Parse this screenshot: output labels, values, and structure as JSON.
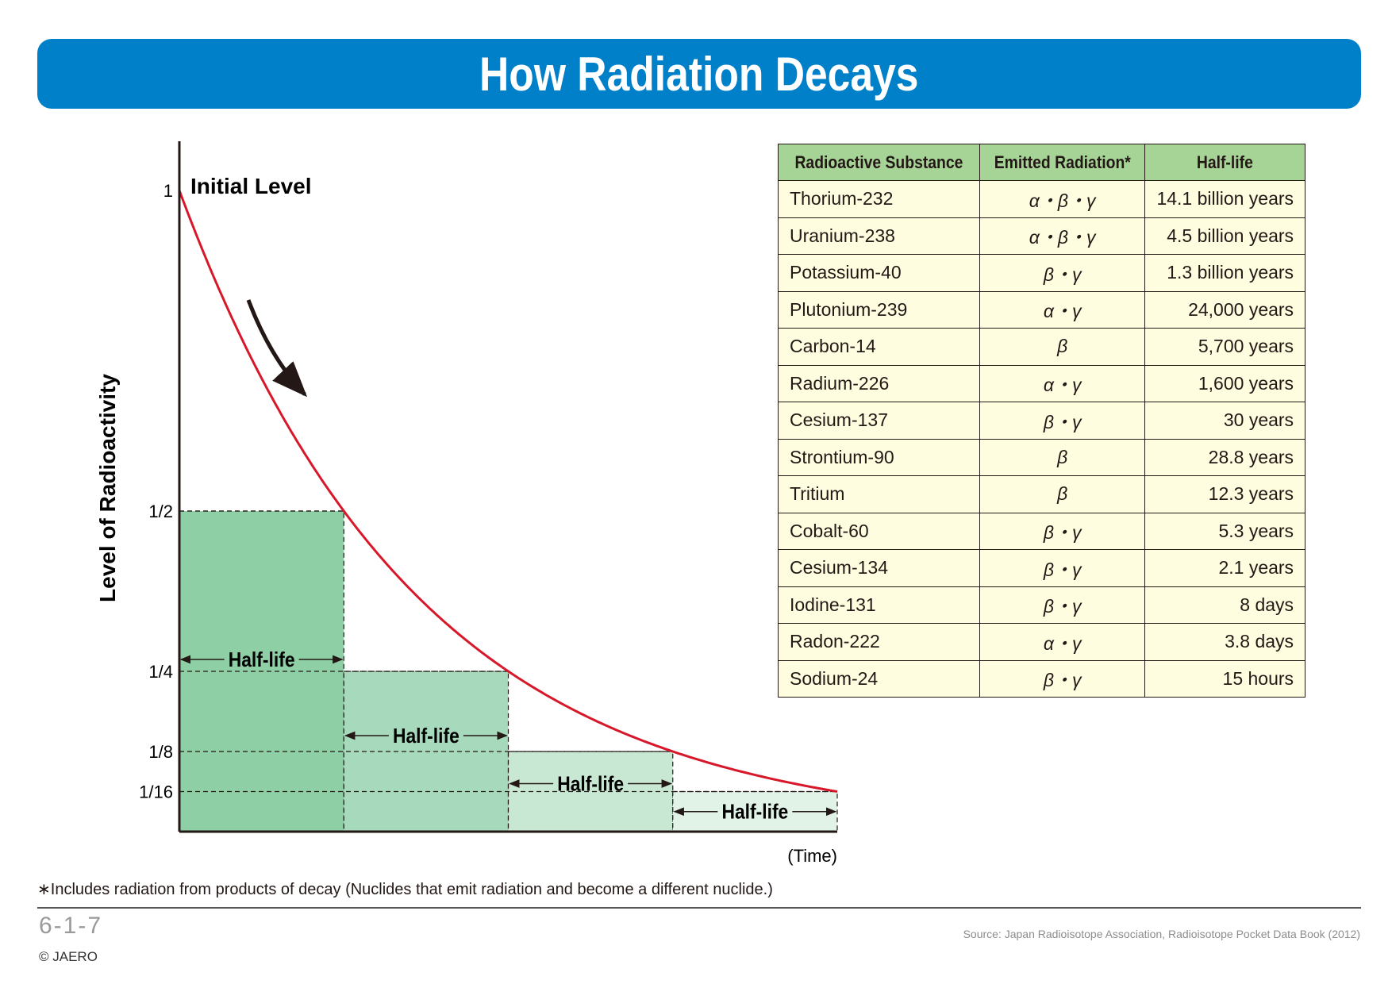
{
  "title": "How Radiation Decays",
  "chart_data": {
    "type": "line",
    "ylabel": "Level of Radioactivity",
    "xlabel": "(Time)",
    "x_unit": "half-lives",
    "xlim": [
      0,
      4
    ],
    "ylim": [
      0,
      1
    ],
    "yticks": [
      {
        "value": 1,
        "label": "1"
      },
      {
        "value": 0.5,
        "label": "1/2"
      },
      {
        "value": 0.25,
        "label": "1/4"
      },
      {
        "value": 0.125,
        "label": "1/8"
      },
      {
        "value": 0.0625,
        "label": "1/16"
      }
    ],
    "series": [
      {
        "x": [
          0,
          0.25,
          0.5,
          0.75,
          1,
          1.25,
          1.5,
          1.75,
          2,
          2.25,
          2.5,
          2.75,
          3,
          3.25,
          3.5,
          3.75,
          4
        ],
        "values": [
          1,
          0.841,
          0.707,
          0.595,
          0.5,
          0.42,
          0.354,
          0.297,
          0.25,
          0.21,
          0.177,
          0.149,
          0.125,
          0.105,
          0.088,
          0.074,
          0.0625
        ],
        "color": "#d7182a"
      }
    ],
    "bars": [
      {
        "x_start": 0,
        "x_end": 1,
        "height": 0.5,
        "label": "Half-life",
        "color": "#8fcfa5"
      },
      {
        "x_start": 1,
        "x_end": 2,
        "height": 0.25,
        "label": "Half-life",
        "color": "#a7d9bc"
      },
      {
        "x_start": 2,
        "x_end": 3,
        "height": 0.125,
        "label": "Half-life",
        "color": "#c9e8d4"
      },
      {
        "x_start": 3,
        "x_end": 4,
        "height": 0.0625,
        "label": "Half-life",
        "color": "#e1f2e7"
      }
    ],
    "annotations": [
      {
        "text": "Initial Level",
        "x": 0,
        "y": 1
      }
    ],
    "arrow_color": "#231815"
  },
  "table": {
    "headers": [
      "Radioactive Substance",
      "Emitted Radiation*",
      "Half-life"
    ],
    "rows": [
      [
        "Thorium-232",
        "α・β・γ",
        "14.1 billion years"
      ],
      [
        "Uranium-238",
        "α・β・γ",
        "4.5 billion years"
      ],
      [
        "Potassium-40",
        "β・γ",
        "1.3 billion years"
      ],
      [
        "Plutonium-239",
        "α・γ",
        "24,000 years"
      ],
      [
        "Carbon-14",
        "β",
        "5,700 years"
      ],
      [
        "Radium-226",
        "α・γ",
        "1,600 years"
      ],
      [
        "Cesium-137",
        "β・γ",
        "30 years"
      ],
      [
        "Strontium-90",
        "β",
        "28.8 years"
      ],
      [
        "Tritium",
        "β",
        "12.3 years"
      ],
      [
        "Cobalt-60",
        "β・γ",
        "5.3 years"
      ],
      [
        "Cesium-134",
        "β・γ",
        "2.1 years"
      ],
      [
        "Iodine-131",
        "β・γ",
        "8 days"
      ],
      [
        "Radon-222",
        "α・γ",
        "3.8 days"
      ],
      [
        "Sodium-24",
        "β・γ",
        "15 hours"
      ]
    ],
    "header_color": "#a6d497",
    "row_color": "#fffde0"
  },
  "footnote": "∗Includes radiation from products of decay (Nuclides that emit radiation and become a different nuclide.)",
  "figure_number": "6-1-7",
  "copyright": "© JAERO",
  "source": "Source: Japan Radioisotope Association, Radioisotope Pocket Data Book (2012)",
  "banner_color": "#0080c8"
}
